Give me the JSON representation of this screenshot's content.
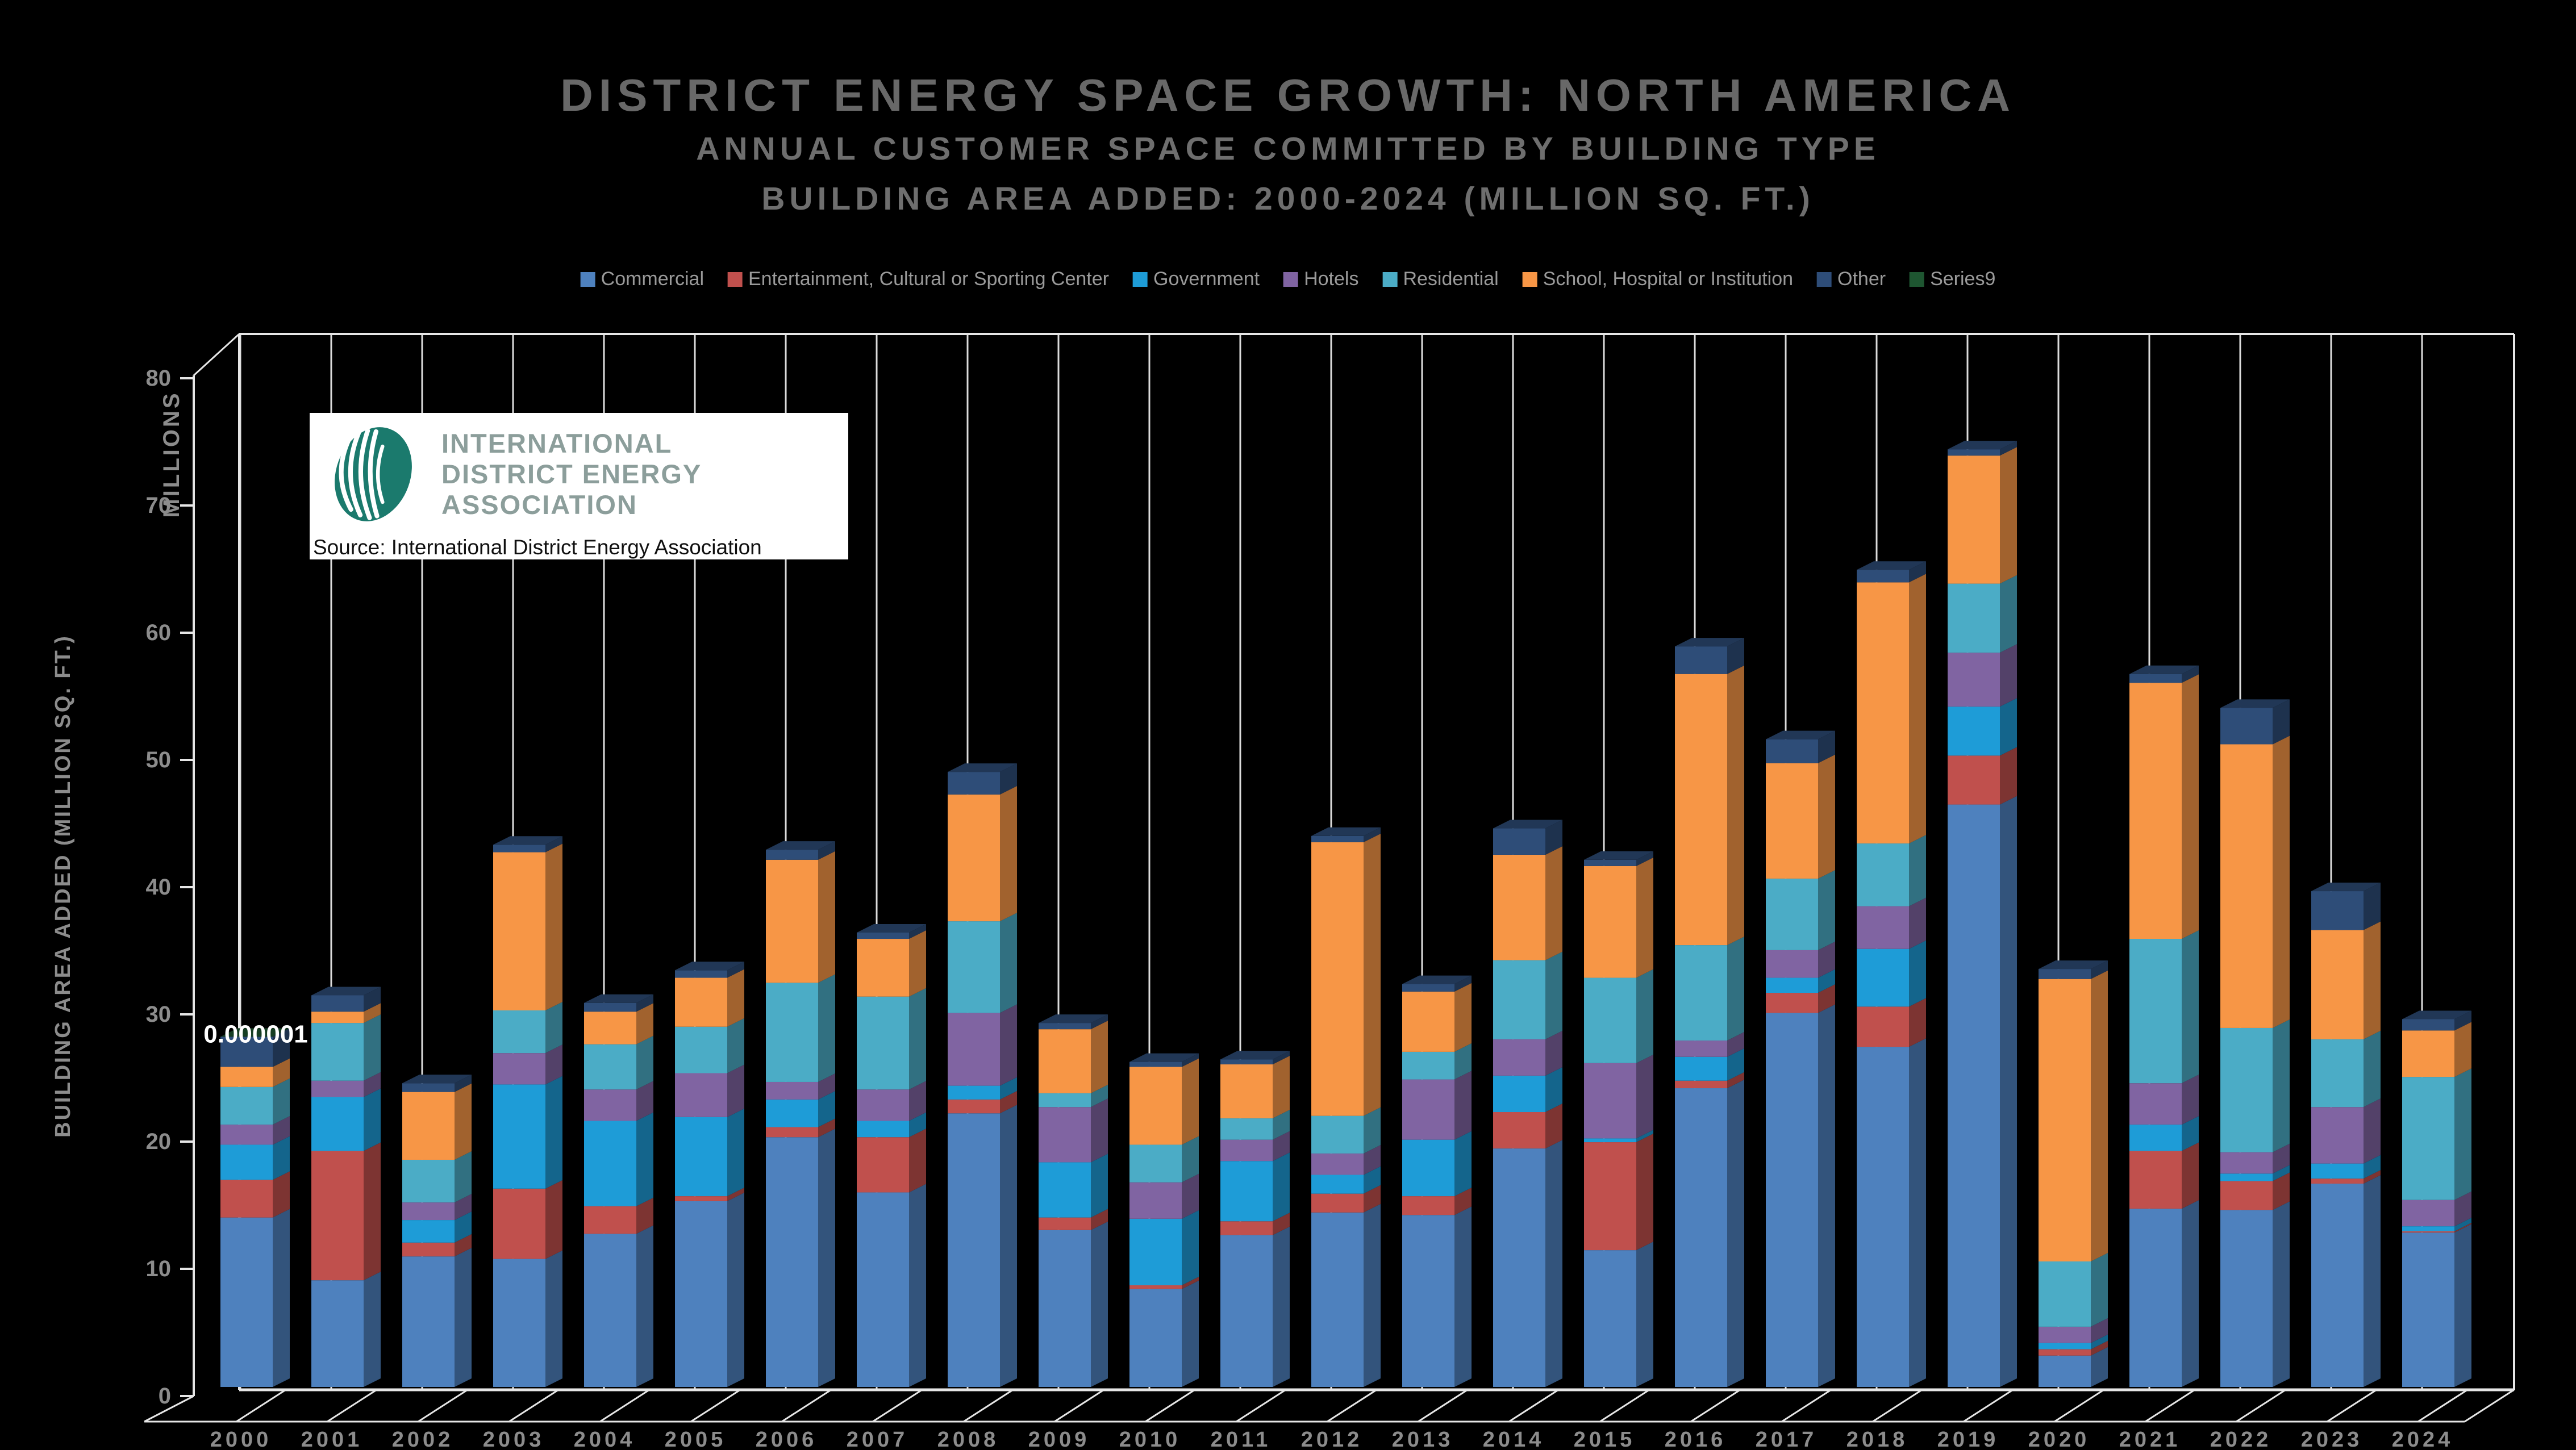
{
  "title": {
    "line1": "DISTRICT ENERGY SPACE GROWTH: NORTH AMERICA",
    "line2": "ANNUAL CUSTOMER SPACE COMMITTED BY BUILDING TYPE",
    "line3": "BUILDING AREA ADDED: 2000-2024 (MILLION SQ. FT.)"
  },
  "y_axis": {
    "title": "BUILDING AREA ADDED (MILLION SQ. FT.)",
    "units_label": "MILLIONS",
    "min": 0,
    "max": 80,
    "step": 10
  },
  "data_label": {
    "text": "0.000001",
    "year": "2000",
    "series": "Series9"
  },
  "logo": {
    "line1": "INTERNATIONAL",
    "line2": "DISTRICT ENERGY",
    "line3": "ASSOCIATION",
    "source_text": "Source: International District Energy Association",
    "brand_color": "#1b7a6d"
  },
  "colors": {
    "background": "#000000",
    "gridline": "#dcdcdc",
    "tick_label": "#8c8c8c",
    "legend_text": "#9a9a9a",
    "title_text": "#6e6e6e",
    "data_label_text": "#ffffff"
  },
  "chart_data": {
    "type": "bar",
    "stacked": true,
    "grid": "vertical-category-lines",
    "legend_position": "top",
    "title": "DISTRICT ENERGY SPACE GROWTH: NORTH AMERICA",
    "xlabel": "",
    "ylabel": "BUILDING AREA ADDED (MILLION SQ. FT.)",
    "ylim": [
      0,
      80
    ],
    "categories": [
      "2000",
      "2001",
      "2002",
      "2003",
      "2004",
      "2005",
      "2006",
      "2007",
      "2008",
      "2009",
      "2010",
      "2011",
      "2012",
      "2013",
      "2014",
      "2015",
      "2016",
      "2017",
      "2018",
      "2019",
      "2020",
      "2021",
      "2022",
      "2023",
      "2024"
    ],
    "series": [
      {
        "name": "Commercial",
        "color": "#4E81BE",
        "values": [
          13.5,
          8.5,
          10.4,
          10.2,
          12.2,
          14.8,
          19.9,
          15.5,
          21.8,
          12.5,
          7.8,
          12.1,
          13.9,
          13.7,
          19.0,
          10.9,
          23.8,
          29.8,
          27.1,
          46.4,
          2.5,
          14.2,
          14.1,
          16.2,
          12.3
        ]
      },
      {
        "name": "Entertainment, Cultural or Sporting Center",
        "color": "#C0504D",
        "values": [
          3.0,
          10.3,
          1.1,
          5.6,
          2.2,
          0.4,
          0.8,
          4.4,
          1.1,
          1.0,
          0.3,
          1.1,
          1.5,
          1.5,
          2.9,
          8.6,
          0.6,
          1.6,
          3.2,
          3.9,
          0.5,
          4.6,
          2.3,
          0.4,
          0.1
        ]
      },
      {
        "name": "Government",
        "color": "#1E9CD7",
        "values": [
          2.8,
          4.3,
          1.8,
          8.3,
          6.8,
          6.3,
          2.2,
          1.3,
          1.1,
          4.4,
          5.3,
          4.8,
          1.5,
          4.5,
          2.9,
          0.3,
          1.9,
          1.2,
          4.6,
          3.9,
          0.5,
          2.1,
          0.6,
          1.2,
          0.4
        ]
      },
      {
        "name": "Hotels",
        "color": "#8064A2",
        "values": [
          1.6,
          1.3,
          1.4,
          2.5,
          2.5,
          3.5,
          1.4,
          2.5,
          5.8,
          4.4,
          2.9,
          1.7,
          1.7,
          4.8,
          2.9,
          6.0,
          1.3,
          2.2,
          3.4,
          4.3,
          1.3,
          3.3,
          1.7,
          4.5,
          2.1
        ]
      },
      {
        "name": "Residential",
        "color": "#4BACC6",
        "values": [
          3.0,
          4.6,
          3.4,
          3.4,
          3.6,
          3.7,
          7.9,
          7.4,
          7.3,
          1.1,
          3.0,
          1.7,
          3.0,
          2.2,
          6.3,
          6.8,
          7.6,
          5.7,
          5.0,
          5.5,
          5.2,
          11.5,
          9.9,
          5.4,
          9.8
        ]
      },
      {
        "name": "School, Hospital or Institution",
        "color": "#F79646",
        "values": [
          1.6,
          0.9,
          5.4,
          12.6,
          2.6,
          3.9,
          9.8,
          4.6,
          10.1,
          5.1,
          6.2,
          4.3,
          21.8,
          4.8,
          8.4,
          8.9,
          21.6,
          9.2,
          20.8,
          10.2,
          22.5,
          20.4,
          22.6,
          8.7,
          3.7
        ]
      },
      {
        "name": "Other",
        "color": "#2E4D78",
        "values": [
          2.4,
          1.3,
          0.7,
          0.6,
          0.7,
          0.6,
          0.8,
          0.5,
          1.8,
          0.5,
          0.4,
          0.4,
          0.5,
          0.6,
          2.1,
          0.5,
          2.2,
          1.9,
          1.0,
          0.5,
          0.8,
          0.7,
          2.9,
          3.1,
          0.9
        ]
      },
      {
        "name": "Series9",
        "color": "#1E5631",
        "values": [
          1e-06,
          0,
          0,
          0,
          0,
          0,
          0,
          0,
          0,
          0,
          0,
          0,
          0,
          0,
          0,
          0,
          0,
          0,
          0,
          0,
          0,
          0,
          0,
          0,
          0
        ]
      }
    ]
  }
}
